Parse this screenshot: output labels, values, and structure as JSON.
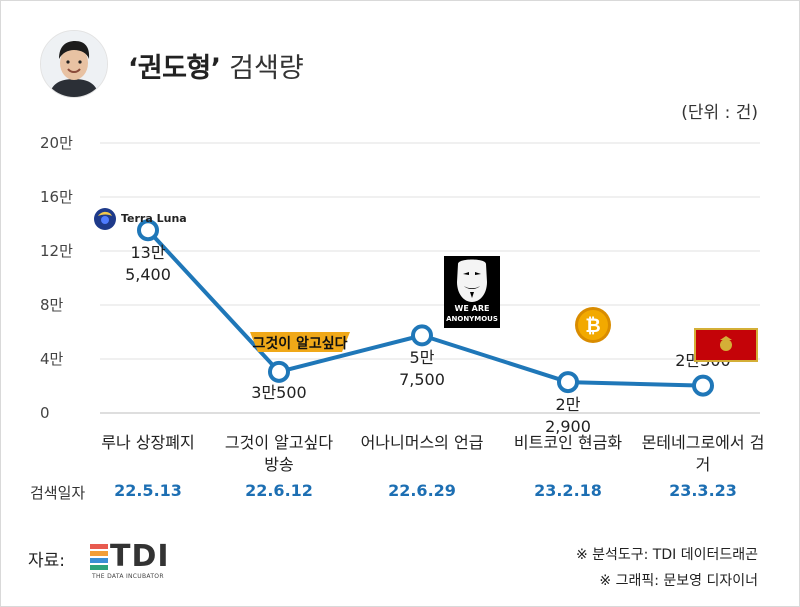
{
  "header": {
    "title_bold": "‘권도형’",
    "title_rest": "검색량",
    "unit": "(단위 : 건)"
  },
  "chart_data": {
    "type": "line",
    "title": "‘권도형’ 검색량",
    "ylabel": "",
    "xlabel": "",
    "ylim": [
      0,
      200000
    ],
    "yticks": [
      {
        "value": 0,
        "label": "0"
      },
      {
        "value": 40000,
        "label": "4만"
      },
      {
        "value": 80000,
        "label": "8만"
      },
      {
        "value": 120000,
        "label": "12만"
      },
      {
        "value": 160000,
        "label": "16만"
      },
      {
        "value": 200000,
        "label": "20만"
      }
    ],
    "grid": true,
    "line_color": "#1f77b8",
    "categories": [
      "루나 상장폐지",
      "그것이 알고싶다 방송",
      "어나니머스의 언급",
      "비트코인 현금화",
      "몬테네그로에서 검거"
    ],
    "values": [
      135400,
      30500,
      57500,
      22900,
      20300
    ],
    "data_labels": [
      [
        "13만",
        "5,400"
      ],
      [
        "3만500"
      ],
      [
        "5만",
        "7,500"
      ],
      [
        "2만",
        "2,900"
      ],
      [
        "2만300"
      ]
    ],
    "date_heading": "검색일자",
    "dates": [
      "22.5.13",
      "22.6.12",
      "22.6.29",
      "23.2.18",
      "23.3.23"
    ]
  },
  "icons": {
    "terra": {
      "name": "terra-luna-logo",
      "text": "Terra Luna",
      "color": "#1e3a8a"
    },
    "unsolved": {
      "name": "unsolved-mysteries-logo",
      "text": "그것이 알고싶다",
      "color": "#f0a818"
    },
    "anonymous": {
      "name": "anonymous-mask-icon",
      "text_1": "WE ARE",
      "text_2": "ANONYMOUS"
    },
    "bitcoin": {
      "name": "bitcoin-coin-icon",
      "color": "#f2a900"
    },
    "montenegro": {
      "name": "montenegro-flag-icon",
      "color": "#c40308",
      "border": "#d4af37"
    }
  },
  "footer": {
    "source_label": "자료:",
    "logo_text": "TDI",
    "logo_subtext": "THE DATA INCUBATOR",
    "credit_1": "※ 분석도구: TDI 데이터드래곤",
    "credit_2": "※ 그래픽: 문보영 디자이너"
  }
}
